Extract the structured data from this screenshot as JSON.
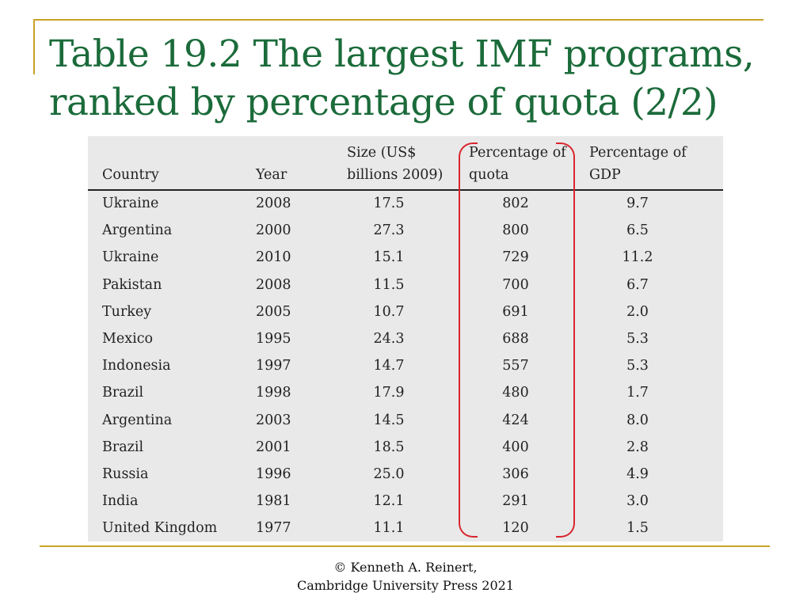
{
  "title": "Table 19.2 The largest IMF programs, ranked by percentage of quota (2/2)",
  "table": {
    "headers": {
      "country": "Country",
      "year": "Year",
      "size_line1": "Size (US$",
      "size_line2": "billions 2009)",
      "quota_line1": "Percentage of",
      "quota_line2": "quota",
      "gdp_line1": "Percentage of",
      "gdp_line2": "GDP"
    },
    "rows": [
      {
        "country": "Ukraine",
        "year": "2008",
        "size": "17.5",
        "quota": "802",
        "gdp": "9.7"
      },
      {
        "country": "Argentina",
        "year": "2000",
        "size": "27.3",
        "quota": "800",
        "gdp": "6.5"
      },
      {
        "country": "Ukraine",
        "year": "2010",
        "size": "15.1",
        "quota": "729",
        "gdp": "11.2"
      },
      {
        "country": "Pakistan",
        "year": "2008",
        "size": "11.5",
        "quota": "700",
        "gdp": "6.7"
      },
      {
        "country": "Turkey",
        "year": "2005",
        "size": "10.7",
        "quota": "691",
        "gdp": "2.0"
      },
      {
        "country": "Mexico",
        "year": "1995",
        "size": "24.3",
        "quota": "688",
        "gdp": "5.3"
      },
      {
        "country": "Indonesia",
        "year": "1997",
        "size": "14.7",
        "quota": "557",
        "gdp": "5.3"
      },
      {
        "country": "Brazil",
        "year": "1998",
        "size": "17.9",
        "quota": "480",
        "gdp": "1.7"
      },
      {
        "country": "Argentina",
        "year": "2003",
        "size": "14.5",
        "quota": "424",
        "gdp": "8.0"
      },
      {
        "country": "Brazil",
        "year": "2001",
        "size": "18.5",
        "quota": "400",
        "gdp": "2.8"
      },
      {
        "country": "Russia",
        "year": "1996",
        "size": "25.0",
        "quota": "306",
        "gdp": "4.9"
      },
      {
        "country": "India",
        "year": "1981",
        "size": "12.1",
        "quota": "291",
        "gdp": "3.0"
      },
      {
        "country": "United Kingdom",
        "year": "1977",
        "size": "11.1",
        "quota": "120",
        "gdp": "1.5"
      }
    ]
  },
  "footer": {
    "line1": "© Kenneth A. Reinert,",
    "line2": "Cambridge University Press 2021"
  },
  "colors": {
    "title": "#1b6b3a",
    "rules": "#c9a227",
    "table_background": "#e9e9e9",
    "highlight_bracket": "#d9262e"
  }
}
